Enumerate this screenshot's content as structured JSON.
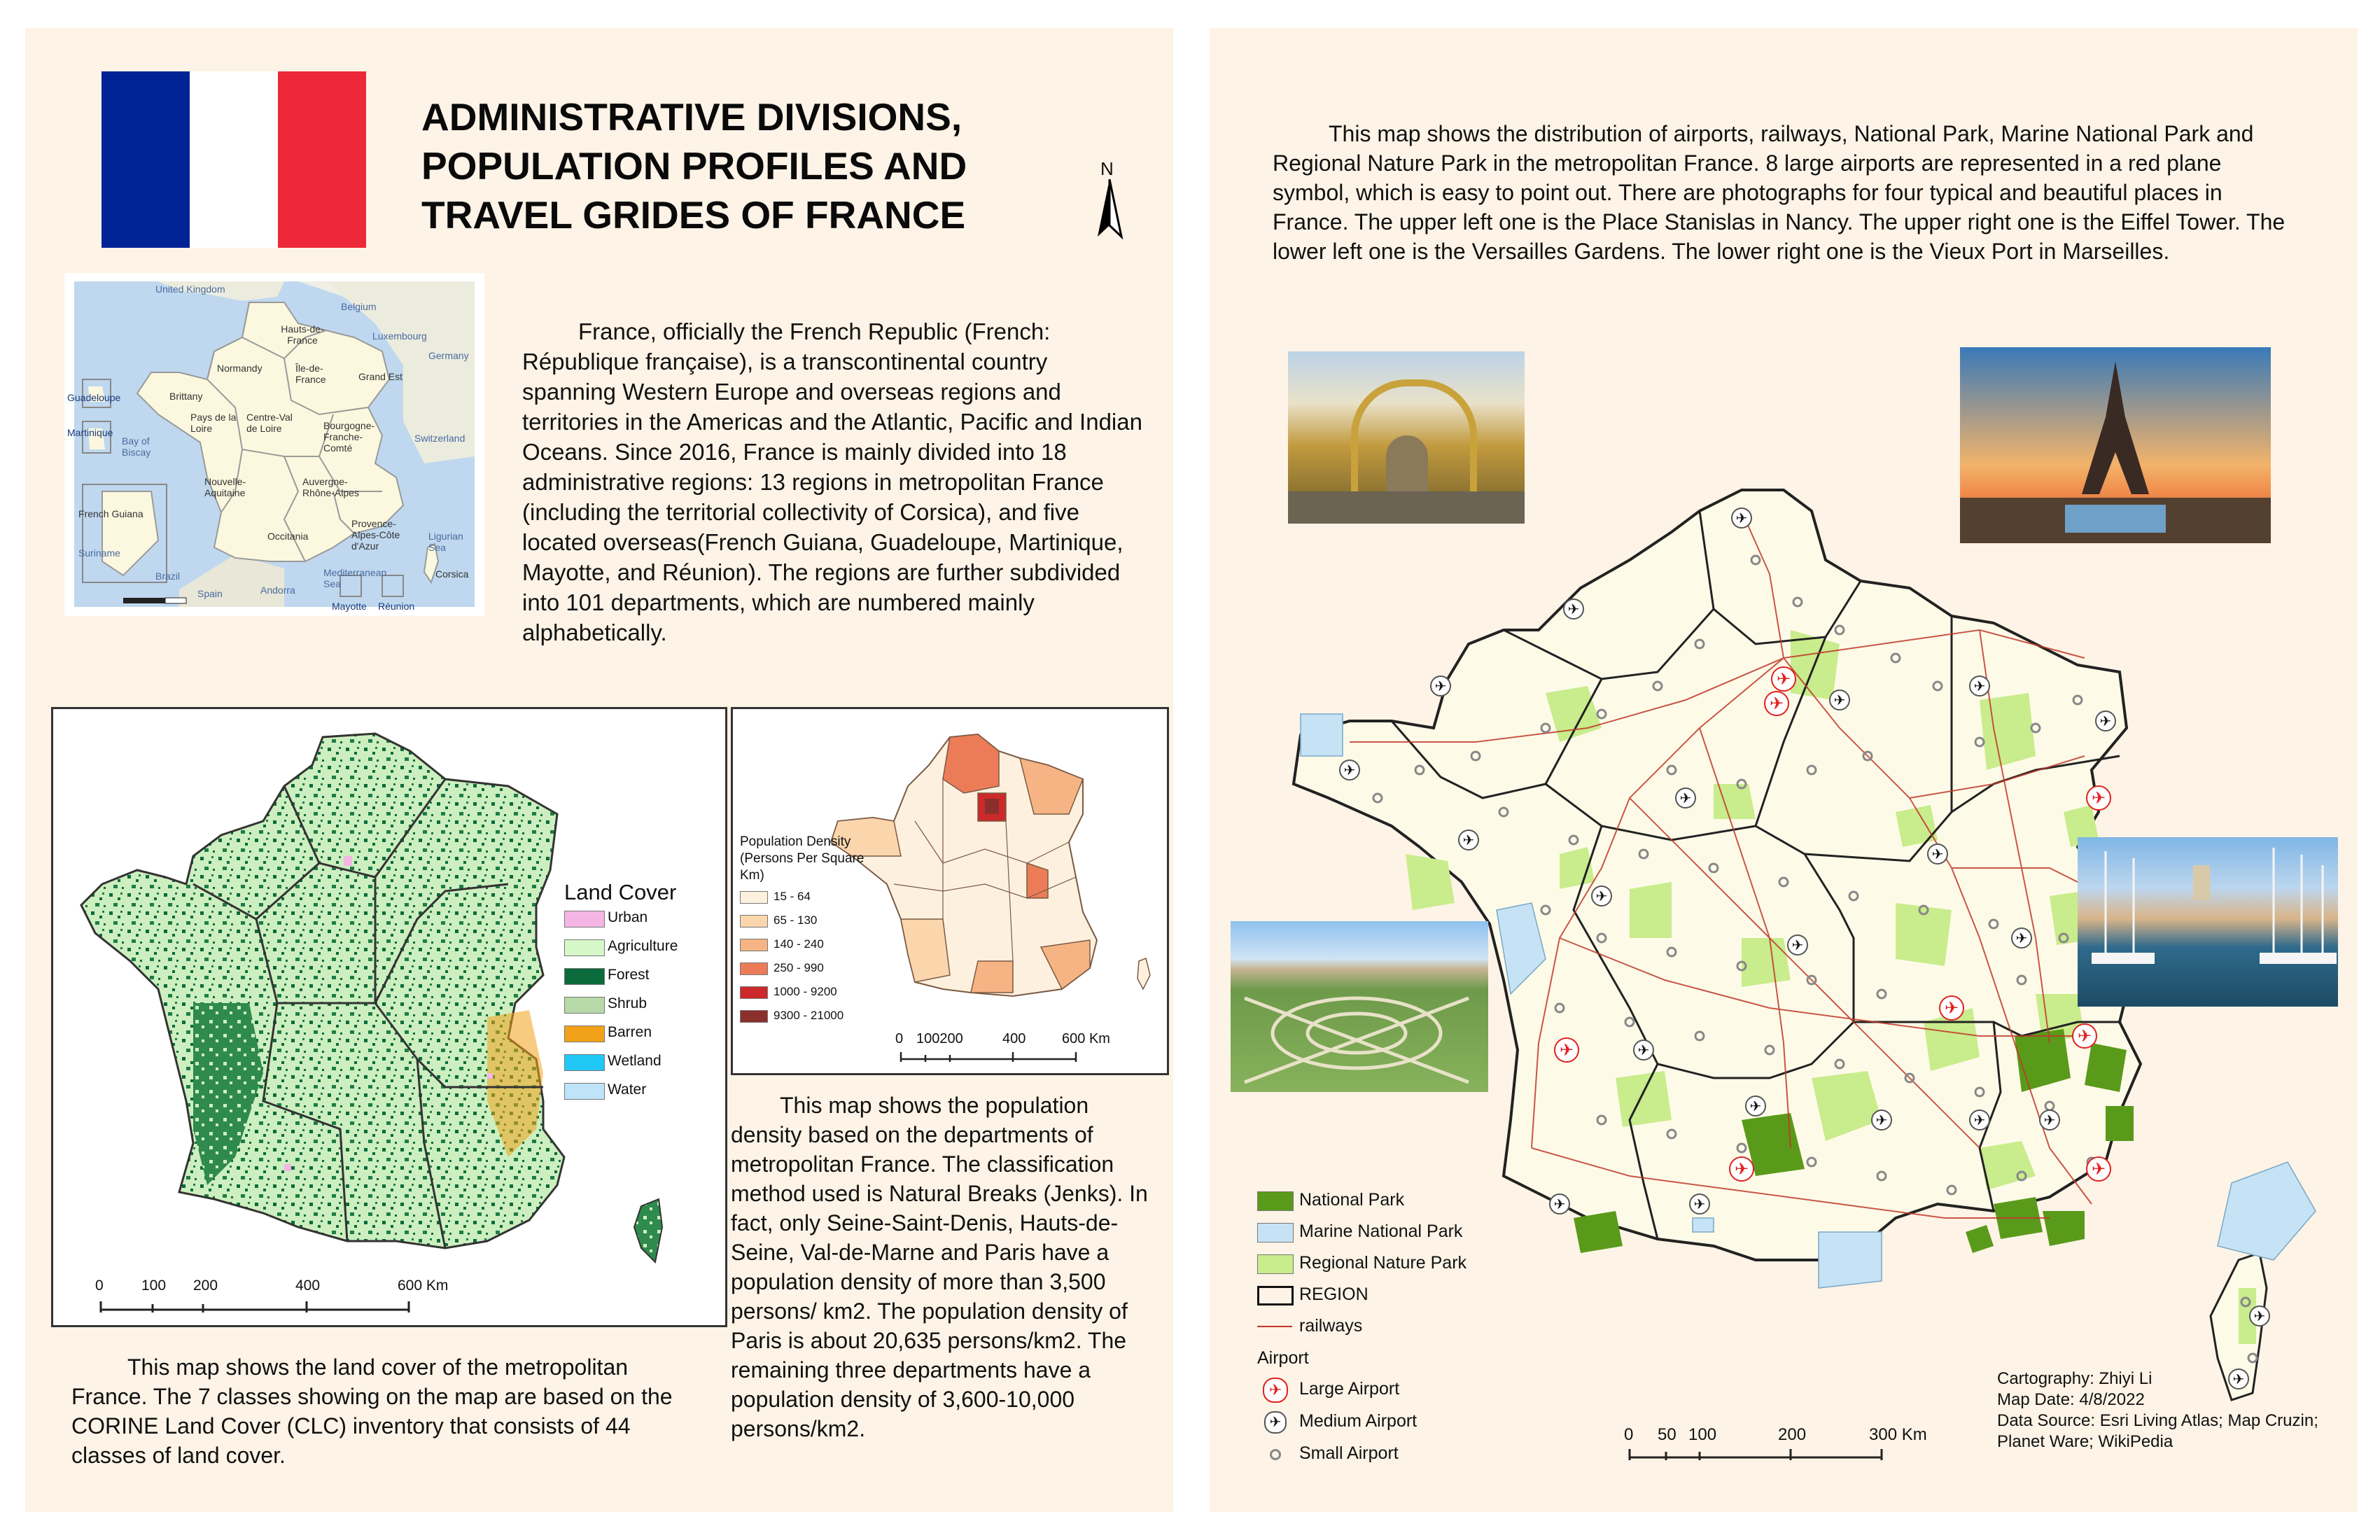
{
  "left_panel": {
    "title": "ADMINISTRATIVE DIVISIONS,\nPOPULATION PROFILES AND\nTRAVEL GRIDES OF FRANCE",
    "title_lines": [
      "ADMINISTRATIVE DIVISIONS,",
      "POPULATION PROFILES AND",
      "TRAVEL GRIDES OF FRANCE"
    ],
    "north_label": "N",
    "flag_colors": [
      "#002395",
      "#ffffff",
      "#ed2939"
    ],
    "intro_text": "France, officially the French Republic (French: République française), is a transcontinental country spanning Western Europe and overseas regions and territories in the Americas and the Atlantic, Pacific and Indian Oceans. Since 2016, France is mainly divided into 18 administrative regions: 13 regions in metropolitan France (including the territorial collectivity of Corsica), and five located overseas(French Guiana, Guadeloupe, Martinique, Mayotte, and Réunion). The regions are further subdivided into 101 departments, which are numbered mainly alphabetically.",
    "region_map_labels": [
      "United Kingdom",
      "Belgium",
      "Hauts-de-France",
      "Luxembourg",
      "Germany",
      "Normandy",
      "Île-de-France",
      "Grand Est",
      "Brittany",
      "Pays de la Loire",
      "Centre-Val de Loire",
      "Bourgogne-Franche-Comté",
      "Switzerland",
      "Guadeloupe",
      "Martinique",
      "Bay of Biscay",
      "Nouvelle-Aquitaine",
      "Auvergne-Rhône-Alpes",
      "French Guiana",
      "Occitania",
      "Provence-Alpes-Côte d'Azur",
      "Ligurian Sea",
      "Suriname",
      "Brazil",
      "Spain",
      "Andorra",
      "Mediterranean Sea",
      "Corsica",
      "Mayotte",
      "Réunion"
    ],
    "land_cover": {
      "legend_title": "Land Cover",
      "classes": [
        {
          "label": "Urban",
          "color": "#f5b6e6"
        },
        {
          "label": "Agriculture",
          "color": "#d6f7c8"
        },
        {
          "label": "Forest",
          "color": "#0b6b3a"
        },
        {
          "label": "Shrub",
          "color": "#b7d9a8"
        },
        {
          "label": "Barren",
          "color": "#f2a218"
        },
        {
          "label": "Wetland",
          "color": "#21c8f5"
        },
        {
          "label": "Water",
          "color": "#bfe3f8"
        }
      ],
      "scale_ticks": [
        "0",
        "100",
        "200",
        "400",
        "600"
      ],
      "scale_unit": "Km",
      "caption": "This map shows the land cover of the metropolitan France. The 7 classes showing on the map are based on the CORINE Land Cover (CLC) inventory that consists of 44 classes of land cover."
    },
    "population": {
      "legend_title": "Population Density (Persons Per Square Km)",
      "legend_title_lines": [
        "Population Density",
        "(Persons Per Square",
        "Km)"
      ],
      "classes": [
        {
          "label": "15 - 64",
          "color": "#fef0de"
        },
        {
          "label": "65 - 130",
          "color": "#fbd6ad"
        },
        {
          "label": "140 - 240",
          "color": "#f6b484"
        },
        {
          "label": "250 - 990",
          "color": "#ec7c58"
        },
        {
          "label": "1000 - 9200",
          "color": "#cc2a2a"
        },
        {
          "label": "9300 - 21000",
          "color": "#8a2f2c"
        }
      ],
      "scale_ticks": [
        "0",
        "100200",
        "400",
        "600"
      ],
      "scale_unit": "Km",
      "caption": "This map shows the population density based on the departments of metropolitan France. The classification method used is Natural Breaks (Jenks). In fact, only Seine-Saint-Denis, Hauts-de-Seine, Val-de-Marne and Paris have a population density of more than 3,500 persons/ km2. The population density of Paris is about 20,635 persons/km2. The remaining three departments have a population density of 3,600-10,000 persons/km2."
    }
  },
  "right_panel": {
    "intro_text": "This map shows the distribution of airports, railways, National Park, Marine National Park and Regional Nature Park in the metropolitan France. 8 large airports are represented in a red plane symbol, which is easy to point out. There are photographs for four typical and beautiful places in France. The upper left one is the Place Stanislas in Nancy. The upper right one is the Eiffel Tower. The lower left one is the Versailles Gardens. The lower right one is the Vieux Port in Marseilles.",
    "legend": {
      "national_park": {
        "label": "National Park",
        "color": "#5a9a1a"
      },
      "marine_park": {
        "label": "Marine National Park",
        "color": "#c6e2f5"
      },
      "regional_park": {
        "label": "Regional Nature Park",
        "color": "#c9ec8c"
      },
      "region": {
        "label": "REGION"
      },
      "railways": {
        "label": "railways",
        "color": "#c0392b"
      },
      "airport_header": "Airport",
      "large_airport": {
        "label": "Large Airport",
        "color": "#e02020"
      },
      "medium_airport": {
        "label": "Medium Airport"
      },
      "small_airport": {
        "label": "Small Airport"
      }
    },
    "scale_ticks": [
      "0",
      "50",
      "100",
      "200",
      "300"
    ],
    "scale_unit": "Km",
    "credits": {
      "cartography": "Cartography: Zhiyi Li",
      "date": "Map Date: 4/8/2022",
      "source": "Data Source: Esri Living Atlas; Map Cruzin; Planet Ware; WikiPedia"
    },
    "photos": [
      "Place Stanislas in Nancy",
      "Eiffel Tower",
      "Versailles Gardens",
      "Vieux Port in Marseilles"
    ]
  }
}
